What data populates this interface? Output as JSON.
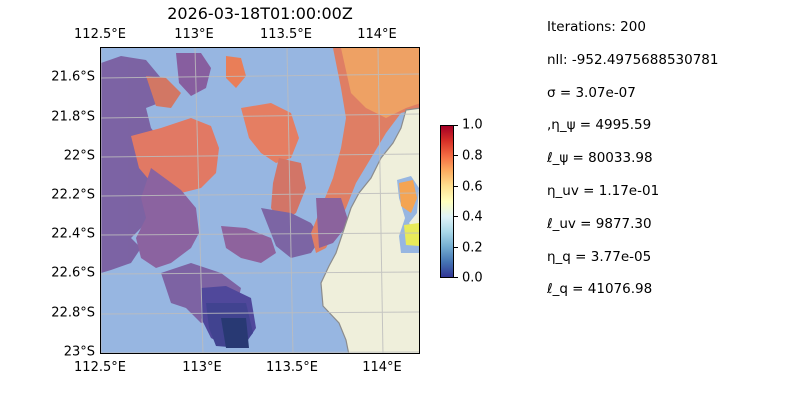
{
  "map": {
    "title": "2026-03-18T01:00:00Z",
    "lon_ticks": [
      "112.5°E",
      "113°E",
      "113.5°E",
      "114°E"
    ],
    "lat_ticks": [
      "21.6°S",
      "21.8°S",
      "22°S",
      "22.2°S",
      "22.4°S",
      "22.6°S",
      "22.8°S",
      "23°S"
    ],
    "ocean_color": "#97b6e1",
    "land_color": "#efefdb",
    "coast_color": "#8c8c8c"
  },
  "colorbar": {
    "ticks": [
      "1.0",
      "0.8",
      "0.6",
      "0.4",
      "0.2",
      "0.0"
    ],
    "colormap": "RdYlBu_r",
    "range": [
      0.0,
      1.0
    ]
  },
  "info": {
    "iterations": "Iterations: 200",
    "nll": "nll: -952.4975688530781",
    "sigma": "σ = 3.07e-07",
    "eta_psi": ",η_ψ = 4995.59",
    "ell_psi": "ℓ_ψ = 80033.98",
    "eta_uv": "η_uv = 1.17e-01",
    "ell_uv": "ℓ_uv = 9877.30",
    "eta_q": "η_q = 3.77e-05",
    "ell_q": "ℓ_q = 41076.98"
  }
}
